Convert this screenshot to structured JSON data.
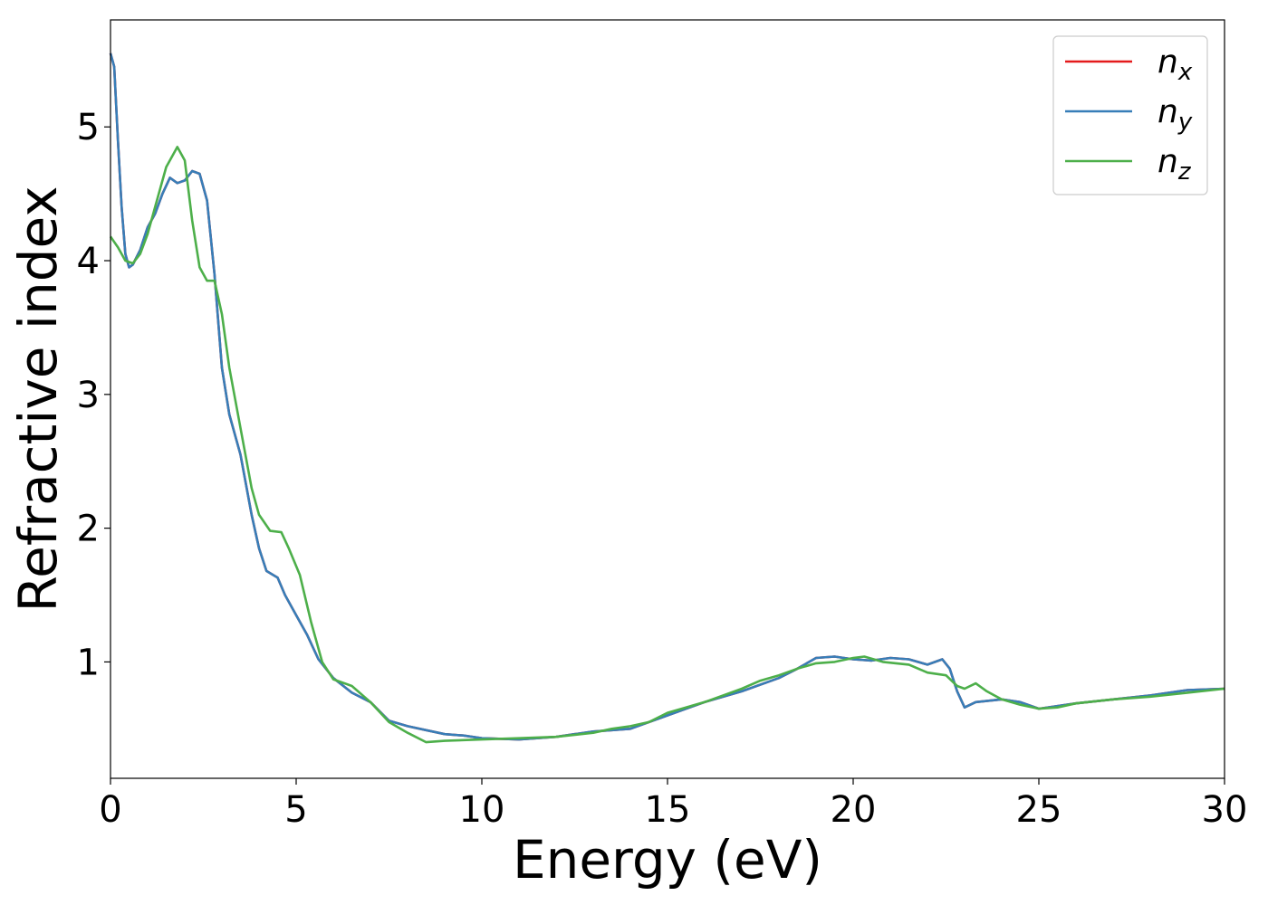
{
  "chart_data": {
    "type": "line",
    "xlabel": "Energy (eV)",
    "ylabel": "Refractive index",
    "xlim": [
      0,
      30
    ],
    "ylim": [
      0.13,
      5.8
    ],
    "xticks": [
      0,
      5,
      10,
      15,
      20,
      25,
      30
    ],
    "yticks": [
      1,
      2,
      3,
      4,
      5
    ],
    "grid": false,
    "legend_position": "top-right",
    "series": [
      {
        "name": "n_x",
        "label_main": "n",
        "label_sub": "x",
        "color": "#e41a1c",
        "points": [
          [
            0,
            5.55
          ],
          [
            0.1,
            5.45
          ],
          [
            0.2,
            4.9
          ],
          [
            0.3,
            4.4
          ],
          [
            0.4,
            4.05
          ],
          [
            0.5,
            3.95
          ],
          [
            0.6,
            3.97
          ],
          [
            0.8,
            4.08
          ],
          [
            1.0,
            4.25
          ],
          [
            1.2,
            4.35
          ],
          [
            1.4,
            4.5
          ],
          [
            1.6,
            4.62
          ],
          [
            1.8,
            4.58
          ],
          [
            2.0,
            4.6
          ],
          [
            2.2,
            4.67
          ],
          [
            2.4,
            4.65
          ],
          [
            2.6,
            4.45
          ],
          [
            2.8,
            3.9
          ],
          [
            3.0,
            3.2
          ],
          [
            3.2,
            2.85
          ],
          [
            3.5,
            2.55
          ],
          [
            3.8,
            2.1
          ],
          [
            4.0,
            1.85
          ],
          [
            4.2,
            1.68
          ],
          [
            4.5,
            1.63
          ],
          [
            4.7,
            1.5
          ],
          [
            5.0,
            1.35
          ],
          [
            5.3,
            1.2
          ],
          [
            5.6,
            1.02
          ],
          [
            6.0,
            0.88
          ],
          [
            6.5,
            0.77
          ],
          [
            7.0,
            0.7
          ],
          [
            7.5,
            0.56
          ],
          [
            8.0,
            0.52
          ],
          [
            8.5,
            0.49
          ],
          [
            9.0,
            0.46
          ],
          [
            9.5,
            0.45
          ],
          [
            10.0,
            0.43
          ],
          [
            11.0,
            0.42
          ],
          [
            12.0,
            0.44
          ],
          [
            12.5,
            0.46
          ],
          [
            13.0,
            0.48
          ],
          [
            14.0,
            0.5
          ],
          [
            14.5,
            0.55
          ],
          [
            15.0,
            0.6
          ],
          [
            16.0,
            0.7
          ],
          [
            17.0,
            0.78
          ],
          [
            18.0,
            0.88
          ],
          [
            18.5,
            0.95
          ],
          [
            19.0,
            1.03
          ],
          [
            19.5,
            1.04
          ],
          [
            20.0,
            1.02
          ],
          [
            20.5,
            1.01
          ],
          [
            21.0,
            1.03
          ],
          [
            21.5,
            1.02
          ],
          [
            22.0,
            0.98
          ],
          [
            22.4,
            1.02
          ],
          [
            22.6,
            0.95
          ],
          [
            22.8,
            0.78
          ],
          [
            23.0,
            0.66
          ],
          [
            23.3,
            0.7
          ],
          [
            24.0,
            0.72
          ],
          [
            24.5,
            0.7
          ],
          [
            25.0,
            0.65
          ],
          [
            26.0,
            0.69
          ],
          [
            27.0,
            0.72
          ],
          [
            28.0,
            0.75
          ],
          [
            29.0,
            0.79
          ],
          [
            30.0,
            0.8
          ]
        ]
      },
      {
        "name": "n_y",
        "label_main": "n",
        "label_sub": "y",
        "color": "#377eb8",
        "points": [
          [
            0,
            5.55
          ],
          [
            0.1,
            5.45
          ],
          [
            0.2,
            4.9
          ],
          [
            0.3,
            4.4
          ],
          [
            0.4,
            4.05
          ],
          [
            0.5,
            3.95
          ],
          [
            0.6,
            3.97
          ],
          [
            0.8,
            4.08
          ],
          [
            1.0,
            4.25
          ],
          [
            1.2,
            4.35
          ],
          [
            1.4,
            4.5
          ],
          [
            1.6,
            4.62
          ],
          [
            1.8,
            4.58
          ],
          [
            2.0,
            4.6
          ],
          [
            2.2,
            4.67
          ],
          [
            2.4,
            4.65
          ],
          [
            2.6,
            4.45
          ],
          [
            2.8,
            3.9
          ],
          [
            3.0,
            3.2
          ],
          [
            3.2,
            2.85
          ],
          [
            3.5,
            2.55
          ],
          [
            3.8,
            2.1
          ],
          [
            4.0,
            1.85
          ],
          [
            4.2,
            1.68
          ],
          [
            4.5,
            1.63
          ],
          [
            4.7,
            1.5
          ],
          [
            5.0,
            1.35
          ],
          [
            5.3,
            1.2
          ],
          [
            5.6,
            1.02
          ],
          [
            6.0,
            0.88
          ],
          [
            6.5,
            0.77
          ],
          [
            7.0,
            0.7
          ],
          [
            7.5,
            0.56
          ],
          [
            8.0,
            0.52
          ],
          [
            8.5,
            0.49
          ],
          [
            9.0,
            0.46
          ],
          [
            9.5,
            0.45
          ],
          [
            10.0,
            0.43
          ],
          [
            11.0,
            0.42
          ],
          [
            12.0,
            0.44
          ],
          [
            12.5,
            0.46
          ],
          [
            13.0,
            0.48
          ],
          [
            14.0,
            0.5
          ],
          [
            14.5,
            0.55
          ],
          [
            15.0,
            0.6
          ],
          [
            16.0,
            0.7
          ],
          [
            17.0,
            0.78
          ],
          [
            18.0,
            0.88
          ],
          [
            18.5,
            0.95
          ],
          [
            19.0,
            1.03
          ],
          [
            19.5,
            1.04
          ],
          [
            20.0,
            1.02
          ],
          [
            20.5,
            1.01
          ],
          [
            21.0,
            1.03
          ],
          [
            21.5,
            1.02
          ],
          [
            22.0,
            0.98
          ],
          [
            22.4,
            1.02
          ],
          [
            22.6,
            0.95
          ],
          [
            22.8,
            0.78
          ],
          [
            23.0,
            0.66
          ],
          [
            23.3,
            0.7
          ],
          [
            24.0,
            0.72
          ],
          [
            24.5,
            0.7
          ],
          [
            25.0,
            0.65
          ],
          [
            26.0,
            0.69
          ],
          [
            27.0,
            0.72
          ],
          [
            28.0,
            0.75
          ],
          [
            29.0,
            0.79
          ],
          [
            30.0,
            0.8
          ]
        ]
      },
      {
        "name": "n_z",
        "label_main": "n",
        "label_sub": "z",
        "color": "#4daf4a",
        "points": [
          [
            0,
            4.18
          ],
          [
            0.2,
            4.1
          ],
          [
            0.4,
            4.0
          ],
          [
            0.6,
            3.98
          ],
          [
            0.8,
            4.05
          ],
          [
            1.0,
            4.2
          ],
          [
            1.2,
            4.4
          ],
          [
            1.5,
            4.7
          ],
          [
            1.8,
            4.85
          ],
          [
            2.0,
            4.75
          ],
          [
            2.2,
            4.3
          ],
          [
            2.4,
            3.95
          ],
          [
            2.6,
            3.85
          ],
          [
            2.8,
            3.85
          ],
          [
            3.0,
            3.6
          ],
          [
            3.2,
            3.2
          ],
          [
            3.5,
            2.75
          ],
          [
            3.8,
            2.3
          ],
          [
            4.0,
            2.1
          ],
          [
            4.3,
            1.98
          ],
          [
            4.6,
            1.97
          ],
          [
            4.8,
            1.85
          ],
          [
            5.1,
            1.65
          ],
          [
            5.4,
            1.3
          ],
          [
            5.7,
            1.0
          ],
          [
            6.0,
            0.87
          ],
          [
            6.5,
            0.82
          ],
          [
            7.0,
            0.7
          ],
          [
            7.5,
            0.55
          ],
          [
            8.0,
            0.47
          ],
          [
            8.5,
            0.4
          ],
          [
            9.0,
            0.41
          ],
          [
            10.0,
            0.42
          ],
          [
            11.0,
            0.43
          ],
          [
            12.0,
            0.44
          ],
          [
            13.0,
            0.47
          ],
          [
            13.5,
            0.5
          ],
          [
            14.0,
            0.52
          ],
          [
            14.5,
            0.55
          ],
          [
            15.0,
            0.62
          ],
          [
            16.0,
            0.7
          ],
          [
            17.0,
            0.8
          ],
          [
            17.5,
            0.86
          ],
          [
            18.0,
            0.9
          ],
          [
            18.5,
            0.95
          ],
          [
            19.0,
            0.99
          ],
          [
            19.5,
            1.0
          ],
          [
            20.0,
            1.03
          ],
          [
            20.3,
            1.04
          ],
          [
            20.8,
            1.0
          ],
          [
            21.5,
            0.98
          ],
          [
            22.0,
            0.92
          ],
          [
            22.5,
            0.9
          ],
          [
            22.8,
            0.82
          ],
          [
            23.0,
            0.8
          ],
          [
            23.3,
            0.84
          ],
          [
            23.6,
            0.78
          ],
          [
            24.0,
            0.72
          ],
          [
            24.5,
            0.68
          ],
          [
            25.0,
            0.65
          ],
          [
            25.5,
            0.66
          ],
          [
            26.0,
            0.69
          ],
          [
            27.0,
            0.72
          ],
          [
            28.0,
            0.74
          ],
          [
            29.0,
            0.77
          ],
          [
            30.0,
            0.8
          ]
        ]
      }
    ]
  }
}
